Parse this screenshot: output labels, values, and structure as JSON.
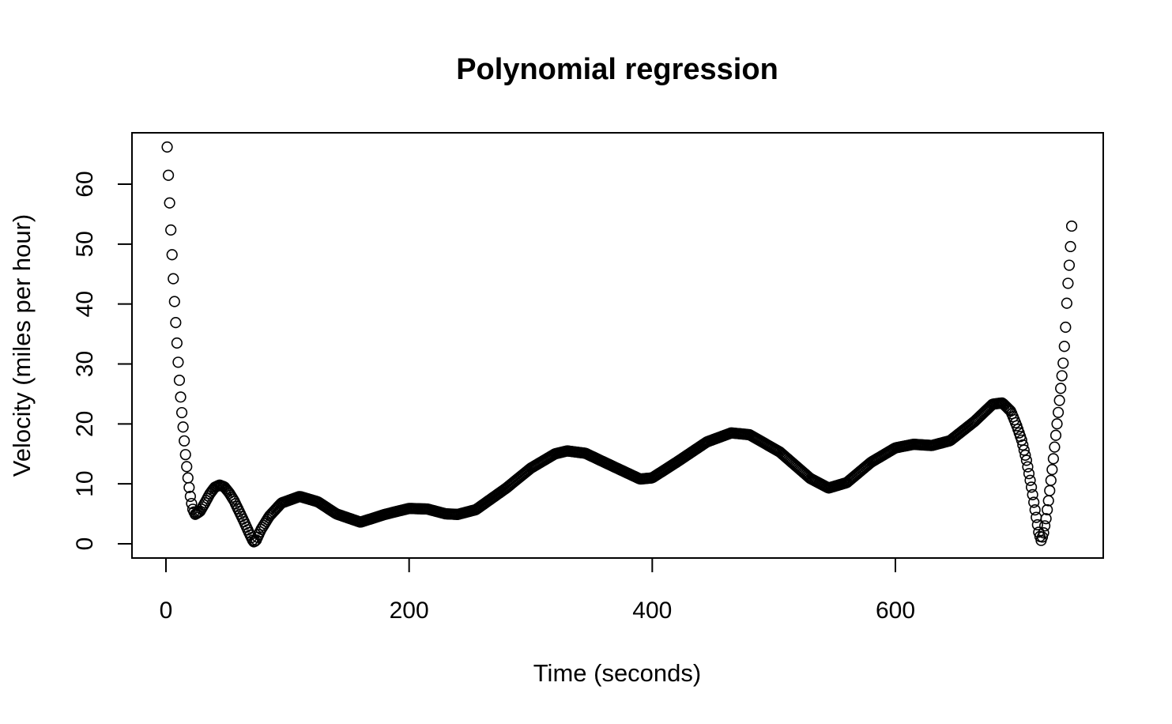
{
  "chart_data": {
    "type": "scatter",
    "title": "Polynomial regression",
    "xlabel": "Time (seconds)",
    "ylabel": "Velocity (miles per hour)",
    "xlim": [
      0,
      750
    ],
    "ylim": [
      0,
      66
    ],
    "x_ticks": [
      0,
      200,
      400,
      600
    ],
    "y_ticks": [
      0,
      10,
      20,
      30,
      40,
      50,
      60
    ],
    "marker": "open-circle",
    "grid": false,
    "legend": "none",
    "x_step": 1,
    "x_start": 1,
    "x_end": 742,
    "curve_knots": [
      [
        1,
        66.2
      ],
      [
        2,
        61.5
      ],
      [
        3,
        56.9
      ],
      [
        4,
        52.4
      ],
      [
        5,
        48.3
      ],
      [
        6,
        44.3
      ],
      [
        7,
        40.5
      ],
      [
        8,
        37.0
      ],
      [
        9,
        33.6
      ],
      [
        10,
        30.4
      ],
      [
        11,
        27.4
      ],
      [
        12,
        24.6
      ],
      [
        13,
        22.0
      ],
      [
        14,
        19.6
      ],
      [
        15,
        17.3
      ],
      [
        16,
        15.0
      ],
      [
        17,
        13.0
      ],
      [
        18,
        11.1
      ],
      [
        19,
        9.5
      ],
      [
        20,
        8.0
      ],
      [
        21,
        6.8
      ],
      [
        22,
        5.8
      ],
      [
        24,
        4.9
      ],
      [
        28,
        5.4
      ],
      [
        32,
        6.8
      ],
      [
        36,
        8.3
      ],
      [
        40,
        9.4
      ],
      [
        44,
        9.8
      ],
      [
        48,
        9.5
      ],
      [
        52,
        8.5
      ],
      [
        56,
        7.2
      ],
      [
        60,
        5.5
      ],
      [
        64,
        3.8
      ],
      [
        68,
        2.0
      ],
      [
        72,
        0.3
      ],
      [
        74,
        0.5
      ],
      [
        78,
        2.3
      ],
      [
        85,
        4.6
      ],
      [
        95,
        6.8
      ],
      [
        110,
        7.9
      ],
      [
        125,
        7.0
      ],
      [
        140,
        5.0
      ],
      [
        160,
        3.6
      ],
      [
        180,
        4.9
      ],
      [
        200,
        5.9
      ],
      [
        215,
        5.8
      ],
      [
        230,
        5.0
      ],
      [
        240,
        4.9
      ],
      [
        255,
        5.7
      ],
      [
        280,
        9.3
      ],
      [
        300,
        12.6
      ],
      [
        320,
        15.0
      ],
      [
        330,
        15.5
      ],
      [
        345,
        15.1
      ],
      [
        370,
        12.7
      ],
      [
        390,
        10.8
      ],
      [
        400,
        11.0
      ],
      [
        420,
        13.6
      ],
      [
        445,
        17.0
      ],
      [
        465,
        18.5
      ],
      [
        480,
        18.2
      ],
      [
        505,
        15.3
      ],
      [
        530,
        10.9
      ],
      [
        545,
        9.3
      ],
      [
        560,
        10.2
      ],
      [
        580,
        13.6
      ],
      [
        600,
        16.0
      ],
      [
        615,
        16.6
      ],
      [
        630,
        16.4
      ],
      [
        645,
        17.2
      ],
      [
        665,
        20.4
      ],
      [
        680,
        23.3
      ],
      [
        688,
        23.5
      ],
      [
        695,
        22.1
      ],
      [
        700,
        19.6
      ],
      [
        704,
        17.2
      ],
      [
        708,
        13.8
      ],
      [
        712,
        9.3
      ],
      [
        715,
        5.5
      ],
      [
        718,
        1.8
      ],
      [
        720,
        0.5
      ],
      [
        722,
        1.9
      ],
      [
        724,
        4.3
      ],
      [
        726,
        7.3
      ],
      [
        728,
        10.7
      ],
      [
        730,
        14.3
      ],
      [
        732,
        18.2
      ],
      [
        734,
        22.0
      ],
      [
        736,
        26.0
      ],
      [
        738,
        30.2
      ],
      [
        739,
        33.0
      ],
      [
        740,
        36.2
      ],
      [
        741,
        40.2
      ],
      [
        742,
        43.5
      ],
      [
        743,
        46.5
      ],
      [
        744,
        49.6
      ],
      [
        745,
        53.0
      ]
    ]
  }
}
